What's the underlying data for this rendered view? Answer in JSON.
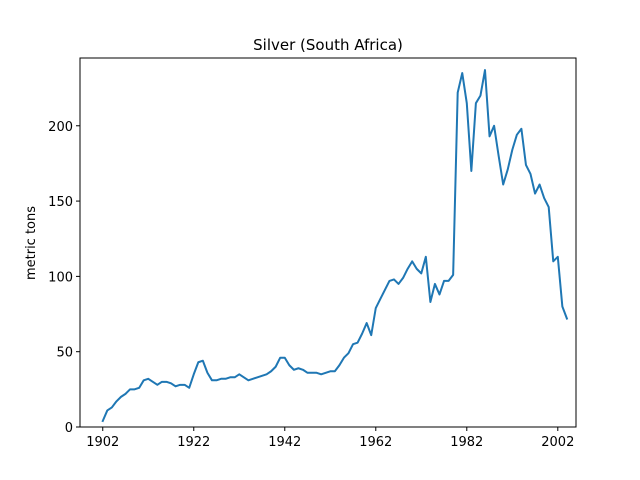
{
  "chart_data": {
    "type": "line",
    "title": "Silver (South Africa)",
    "xlabel": "",
    "ylabel": "metric tons",
    "xlim": [
      1897,
      2006
    ],
    "ylim": [
      0,
      245
    ],
    "xticks": [
      1902,
      1922,
      1942,
      1962,
      1982,
      2002
    ],
    "yticks": [
      0,
      50,
      100,
      150,
      200
    ],
    "grid": false,
    "legend": "none",
    "line_color": "#1f77b4",
    "series": [
      {
        "x": [
          1902,
          1903,
          1904,
          1905,
          1906,
          1907,
          1908,
          1909,
          1910,
          1911,
          1912,
          1913,
          1914,
          1915,
          1916,
          1917,
          1918,
          1919,
          1920,
          1921,
          1922,
          1923,
          1924,
          1925,
          1926,
          1927,
          1928,
          1929,
          1930,
          1931,
          1932,
          1933,
          1934,
          1935,
          1936,
          1937,
          1938,
          1939,
          1940,
          1941,
          1942,
          1943,
          1944,
          1945,
          1946,
          1947,
          1948,
          1949,
          1950,
          1951,
          1952,
          1953,
          1954,
          1955,
          1956,
          1957,
          1958,
          1959,
          1960,
          1961,
          1962,
          1963,
          1964,
          1965,
          1966,
          1967,
          1968,
          1969,
          1970,
          1971,
          1972,
          1973,
          1974,
          1975,
          1976,
          1977,
          1978,
          1979,
          1980,
          1981,
          1982,
          1983,
          1984,
          1985,
          1986,
          1987,
          1988,
          1989,
          1990,
          1991,
          1992,
          1993,
          1994,
          1995,
          1996,
          1997,
          1998,
          1999,
          2000,
          2001,
          2002,
          2003,
          2004
        ],
        "y": [
          4,
          11,
          13,
          17,
          20,
          22,
          25,
          25,
          26,
          31,
          32,
          30,
          28,
          30,
          30,
          29,
          27,
          28,
          28,
          26,
          35,
          43,
          44,
          36,
          31,
          31,
          32,
          32,
          33,
          33,
          35,
          33,
          31,
          32,
          33,
          34,
          35,
          37,
          40,
          46,
          46,
          41,
          38,
          39,
          38,
          36,
          36,
          36,
          35,
          36,
          37,
          37,
          41,
          46,
          49,
          55,
          56,
          62,
          69,
          61,
          79,
          85,
          91,
          97,
          98,
          95,
          99,
          105,
          110,
          105,
          102,
          113,
          83,
          95,
          88,
          97,
          97,
          101,
          222,
          235,
          215,
          170,
          215,
          220,
          237,
          193,
          200,
          180,
          161,
          171,
          184,
          194,
          198,
          174,
          168,
          155,
          161,
          152,
          146,
          110,
          113,
          80,
          72
        ]
      }
    ]
  }
}
